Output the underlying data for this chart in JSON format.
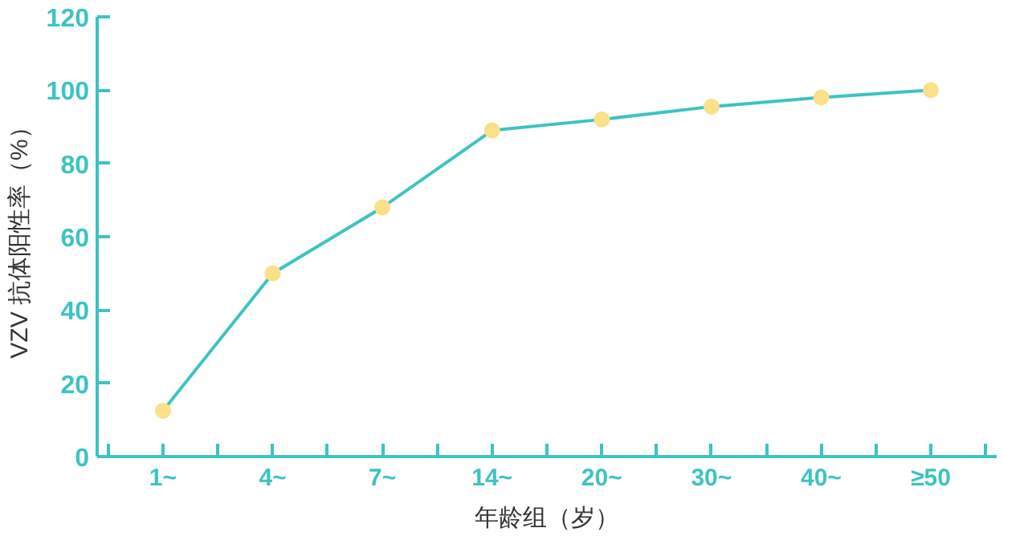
{
  "chart_data": {
    "type": "line",
    "xlabel": "年龄组（岁）",
    "ylabel": "VZV 抗体阳性率（%）",
    "categories": [
      "1~",
      "4~",
      "7~",
      "14~",
      "20~",
      "30~",
      "40~",
      "≥50"
    ],
    "series": [
      {
        "color": "#3cc3c3",
        "values": [
          12.5,
          50,
          68,
          89,
          92,
          95.5,
          98,
          100
        ]
      }
    ],
    "marker": "circle",
    "line_style": "solid",
    "ylim": [
      0,
      120
    ],
    "yticks": [
      0,
      20,
      40,
      60,
      80,
      100,
      120
    ],
    "grid": false
  }
}
